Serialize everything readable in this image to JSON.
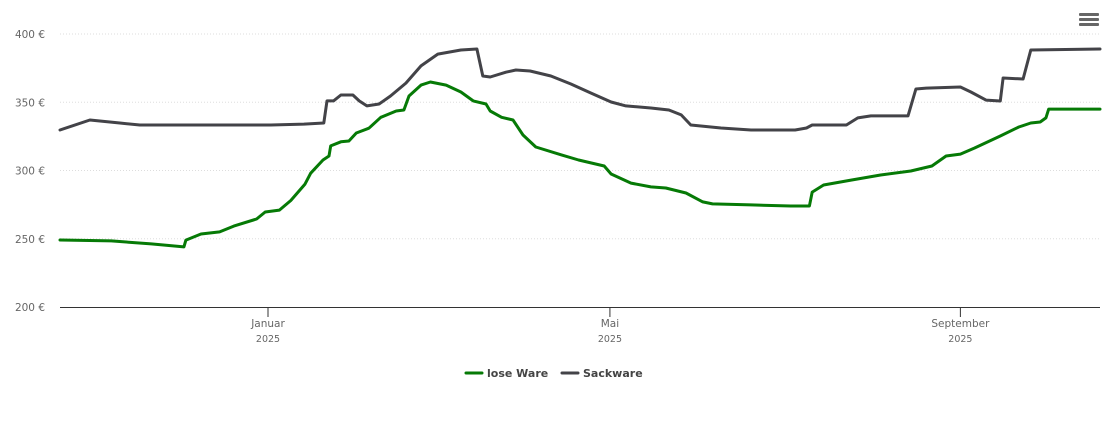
{
  "chart_data": {
    "type": "line",
    "x_unit": "days since 2025-01-01",
    "xlim": [
      -73,
      292
    ],
    "ylim": [
      200,
      400
    ],
    "yticks": [
      200,
      250,
      300,
      350,
      400
    ],
    "ytick_labels": [
      "200 €",
      "250 €",
      "300 €",
      "350 €",
      "400 €"
    ],
    "xticks": [
      {
        "day": 0,
        "label": "Januar",
        "sub": "2025"
      },
      {
        "day": 120,
        "label": "Mai",
        "sub": "2025"
      },
      {
        "day": 243,
        "label": "September",
        "sub": "2025"
      }
    ],
    "grid": true,
    "legend_position": "bottom-center",
    "series": [
      {
        "name": "lose Ware",
        "color": "#067a06",
        "points": [
          [
            -73,
            249.1
          ],
          [
            -55,
            248.4
          ],
          [
            -41,
            246.2
          ],
          [
            -29.5,
            244
          ],
          [
            -28.8,
            249
          ],
          [
            -23.5,
            253.5
          ],
          [
            -17,
            255
          ],
          [
            -12,
            259.3
          ],
          [
            -4,
            264.5
          ],
          [
            -1,
            269.6
          ],
          [
            4,
            271
          ],
          [
            8,
            278
          ],
          [
            13,
            290
          ],
          [
            15,
            298
          ],
          [
            19.3,
            307.7
          ],
          [
            21.4,
            310.6
          ],
          [
            22,
            318
          ],
          [
            25.6,
            321
          ],
          [
            28.4,
            321.6
          ],
          [
            31,
            327.5
          ],
          [
            35.4,
            331
          ],
          [
            39.6,
            339
          ],
          [
            45,
            343.6
          ],
          [
            47.7,
            344.3
          ],
          [
            49.5,
            354.6
          ],
          [
            53.7,
            362.6
          ],
          [
            57,
            364.8
          ],
          [
            62.5,
            362.6
          ],
          [
            67.7,
            357.5
          ],
          [
            72,
            351
          ],
          [
            76.5,
            348.7
          ],
          [
            78,
            343.6
          ],
          [
            82,
            339
          ],
          [
            86,
            337
          ],
          [
            89.5,
            326
          ],
          [
            94,
            317.2
          ],
          [
            103,
            311.4
          ],
          [
            109,
            307.7
          ],
          [
            118,
            303.3
          ],
          [
            120.4,
            297.4
          ],
          [
            127.4,
            290.8
          ],
          [
            134.4,
            288
          ],
          [
            139.6,
            287.2
          ],
          [
            146.7,
            283.5
          ],
          [
            152.6,
            277
          ],
          [
            156,
            275.5
          ],
          [
            169.5,
            274.8
          ],
          [
            183.5,
            274
          ],
          [
            190,
            274
          ],
          [
            191,
            284.2
          ],
          [
            195,
            289.4
          ],
          [
            204.6,
            293
          ],
          [
            215,
            296.7
          ],
          [
            225.6,
            299.6
          ],
          [
            233,
            303.3
          ],
          [
            238,
            310.6
          ],
          [
            243,
            312
          ],
          [
            248,
            316.5
          ],
          [
            257,
            325.3
          ],
          [
            263.5,
            331.9
          ],
          [
            267.7,
            334.8
          ],
          [
            271,
            335.5
          ],
          [
            273,
            338.5
          ],
          [
            274,
            345
          ],
          [
            292,
            345
          ]
        ]
      },
      {
        "name": "Sackware",
        "color": "#434348",
        "points": [
          [
            -73,
            329.7
          ],
          [
            -62.5,
            337
          ],
          [
            -52,
            334.8
          ],
          [
            -45,
            333.3
          ],
          [
            -23.5,
            333.3
          ],
          [
            1,
            333.3
          ],
          [
            12.6,
            334
          ],
          [
            19.6,
            334.8
          ],
          [
            20.7,
            351
          ],
          [
            23,
            351
          ],
          [
            25.6,
            355.3
          ],
          [
            29.8,
            355.3
          ],
          [
            32,
            351
          ],
          [
            34.7,
            347.3
          ],
          [
            39,
            348.7
          ],
          [
            43,
            354.6
          ],
          [
            48.4,
            364
          ],
          [
            53.7,
            376.6
          ],
          [
            59.6,
            385.3
          ],
          [
            67.7,
            388.3
          ],
          [
            73.3,
            389
          ],
          [
            75.4,
            369.2
          ],
          [
            78,
            368.5
          ],
          [
            83.5,
            372
          ],
          [
            87,
            373.6
          ],
          [
            92,
            372.9
          ],
          [
            99.3,
            369.2
          ],
          [
            106.3,
            363.4
          ],
          [
            113.3,
            356.8
          ],
          [
            120.4,
            350.2
          ],
          [
            125.6,
            347.3
          ],
          [
            134.4,
            345.8
          ],
          [
            140.7,
            344.3
          ],
          [
            145,
            340.7
          ],
          [
            148.4,
            333.3
          ],
          [
            159,
            331.1
          ],
          [
            169.5,
            329.7
          ],
          [
            185,
            329.7
          ],
          [
            189,
            331.1
          ],
          [
            191,
            333.3
          ],
          [
            203,
            333.3
          ],
          [
            207,
            338.5
          ],
          [
            211.6,
            340
          ],
          [
            224.6,
            340
          ],
          [
            227.4,
            359.7
          ],
          [
            231,
            360.4
          ],
          [
            243,
            361.2
          ],
          [
            246.7,
            357.5
          ],
          [
            252,
            351.6
          ],
          [
            257,
            350.9
          ],
          [
            258,
            367.8
          ],
          [
            265,
            367
          ],
          [
            267.7,
            388.3
          ],
          [
            292,
            389
          ]
        ]
      }
    ]
  }
}
